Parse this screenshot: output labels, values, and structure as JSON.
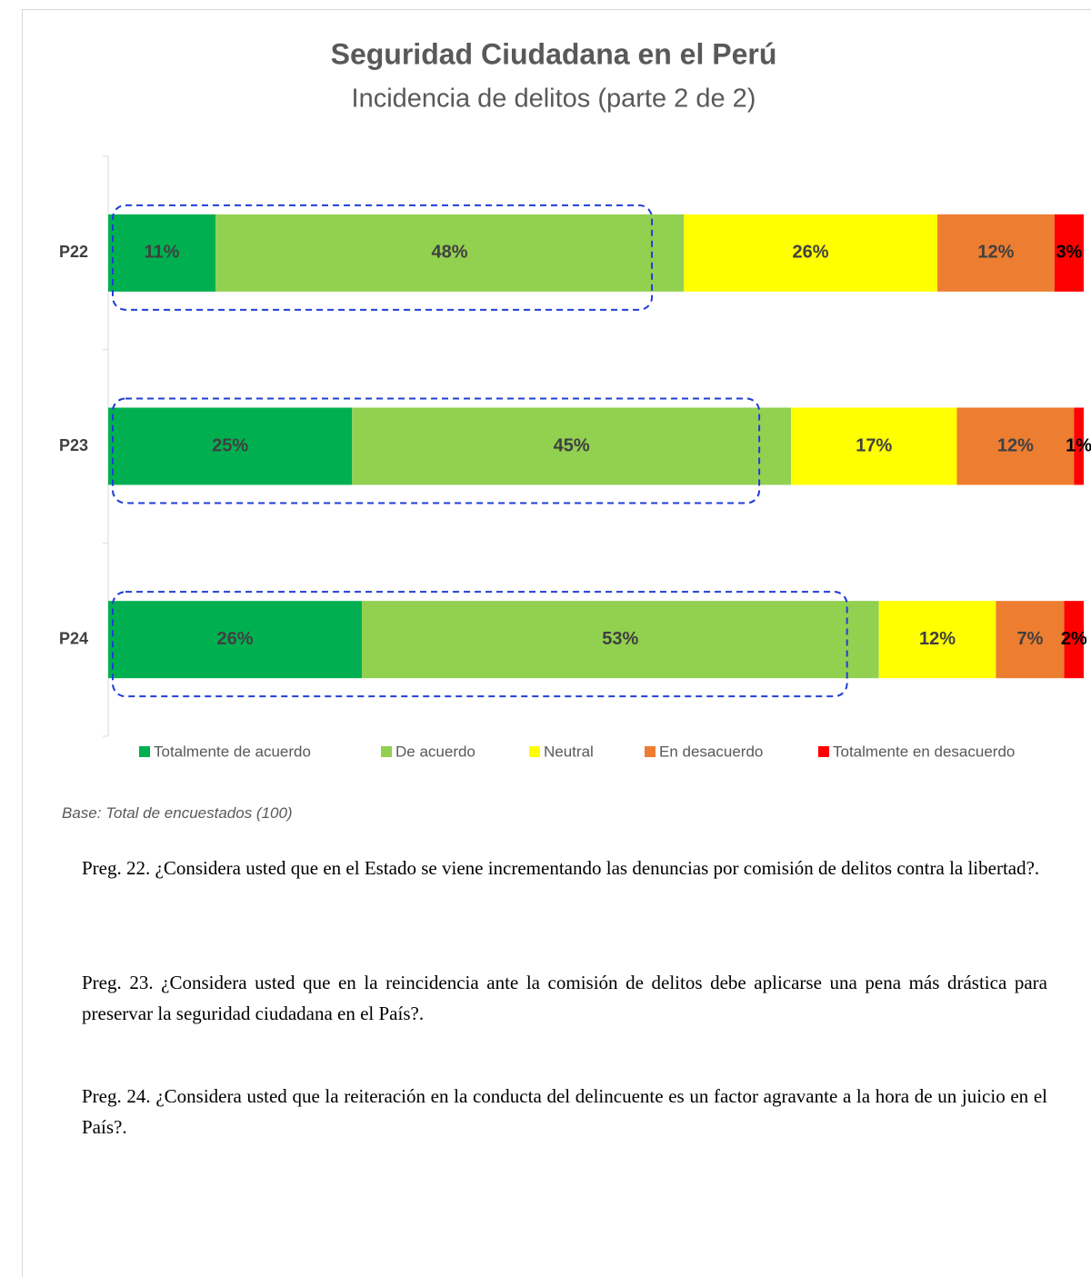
{
  "chart_data": {
    "type": "stacked-bar-horizontal",
    "title": "Seguridad Ciudadana en el Perú",
    "subtitle": "Incidencia de delitos (parte 2 de 2)",
    "categories": [
      "P22",
      "P23",
      "P24"
    ],
    "series": [
      {
        "name": "Totalmente de acuerdo",
        "color": "#00b050",
        "values": [
          11,
          25,
          26
        ],
        "value_labels": [
          "11%",
          "25%",
          "26%"
        ]
      },
      {
        "name": "De acuerdo",
        "color": "#92d050",
        "values": [
          48,
          45,
          53
        ],
        "value_labels": [
          "48%",
          "45%",
          "53%"
        ]
      },
      {
        "name": "Neutral",
        "color": "#ffff00",
        "values": [
          26,
          17,
          12
        ],
        "value_labels": [
          "26%",
          "17%",
          "12%"
        ]
      },
      {
        "name": "En desacuerdo",
        "color": "#ed7d31",
        "values": [
          12,
          12,
          7
        ],
        "value_labels": [
          "12%",
          "12%",
          "7%"
        ]
      },
      {
        "name": "Totalmente en desacuerdo",
        "color": "#ff0000",
        "values": [
          3,
          1,
          2
        ],
        "value_labels": [
          "3%",
          "1%",
          "2%"
        ]
      }
    ],
    "legend": "bottom"
  },
  "base_note": "Base: Total de encuestados (100)",
  "questions": [
    "Preg. 22. ¿Considera usted que en el Estado se viene incrementando las denuncias por comisión de delitos contra la libertad?.",
    "Preg. 23. ¿Considera usted que en la reincidencia ante la comisión de delitos debe aplicarse una pena más drástica para preservar la seguridad ciudadana en el País?.",
    "Preg. 24. ¿Considera usted que la reiteración en la conducta del delincuente es un factor agravante a la hora de un juicio en el País?."
  ]
}
